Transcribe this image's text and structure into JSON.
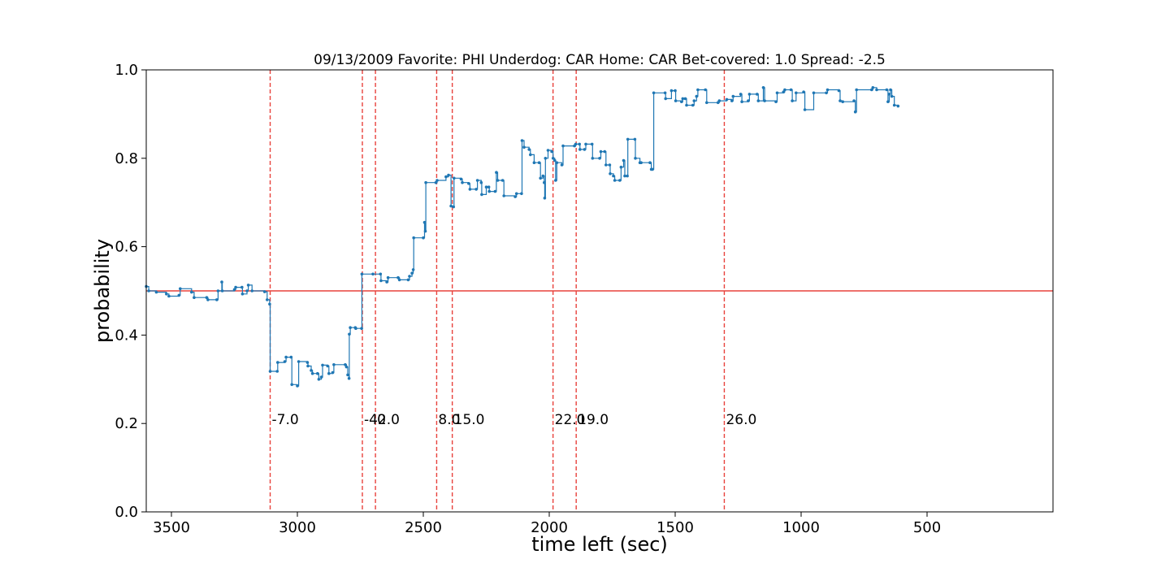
{
  "chart_data": {
    "type": "line",
    "title": "09/13/2009 Favorite: PHI Underdog: CAR Home: CAR Bet-covered: 1.0 Spread: -2.5",
    "xlabel": "time left (sec)",
    "ylabel": "probability",
    "xlim": [
      3600,
      0
    ],
    "ylim": [
      0.0,
      1.0
    ],
    "x_ticks": [
      3500,
      3000,
      2500,
      2000,
      1500,
      1000,
      500
    ],
    "y_ticks": [
      0.0,
      0.2,
      0.4,
      0.6,
      0.8,
      1.0
    ],
    "x_tick_labels": [
      "3500",
      "3000",
      "2500",
      "2000",
      "1500",
      "1000",
      "500"
    ],
    "y_tick_labels": [
      "0.0",
      "0.2",
      "0.4",
      "0.6",
      "0.8",
      "1.0"
    ],
    "reference_line": {
      "y": 0.5,
      "color": "#e8423c"
    },
    "line_color": "#1f77b4",
    "event_lines": [
      {
        "x": 3108,
        "label": "-7.0"
      },
      {
        "x": 2742,
        "label": "-42.0"
      },
      {
        "x": 2690,
        "label": "0"
      },
      {
        "x": 2447,
        "label": "8.0"
      },
      {
        "x": 2385,
        "label": "15.0"
      },
      {
        "x": 1985,
        "label": "22.0"
      },
      {
        "x": 1893,
        "label": "19.0"
      },
      {
        "x": 1305,
        "label": "26.0"
      }
    ],
    "series": [
      {
        "points": [
          [
            3600,
            0.51
          ],
          [
            3590,
            0.5
          ],
          [
            3560,
            0.497
          ],
          [
            3520,
            0.493
          ],
          [
            3510,
            0.488
          ],
          [
            3470,
            0.49
          ],
          [
            3465,
            0.505
          ],
          [
            3420,
            0.497
          ],
          [
            3410,
            0.485
          ],
          [
            3360,
            0.485
          ],
          [
            3355,
            0.48
          ],
          [
            3320,
            0.48
          ],
          [
            3315,
            0.5
          ],
          [
            3300,
            0.52
          ],
          [
            3298,
            0.5
          ],
          [
            3250,
            0.503
          ],
          [
            3245,
            0.508
          ],
          [
            3220,
            0.508
          ],
          [
            3218,
            0.493
          ],
          [
            3200,
            0.5
          ],
          [
            3195,
            0.513
          ],
          [
            3180,
            0.5
          ],
          [
            3130,
            0.498
          ],
          [
            3120,
            0.48
          ],
          [
            3110,
            0.47
          ],
          [
            3108,
            0.318
          ],
          [
            3080,
            0.318
          ],
          [
            3078,
            0.338
          ],
          [
            3050,
            0.34
          ],
          [
            3045,
            0.35
          ],
          [
            3025,
            0.35
          ],
          [
            3022,
            0.288
          ],
          [
            3000,
            0.285
          ],
          [
            2995,
            0.34
          ],
          [
            2960,
            0.338
          ],
          [
            2958,
            0.33
          ],
          [
            2945,
            0.32
          ],
          [
            2940,
            0.313
          ],
          [
            2920,
            0.313
          ],
          [
            2915,
            0.3
          ],
          [
            2905,
            0.305
          ],
          [
            2900,
            0.332
          ],
          [
            2880,
            0.33
          ],
          [
            2875,
            0.313
          ],
          [
            2860,
            0.315
          ],
          [
            2855,
            0.333
          ],
          [
            2810,
            0.333
          ],
          [
            2805,
            0.328
          ],
          [
            2800,
            0.31
          ],
          [
            2795,
            0.302
          ],
          [
            2794,
            0.402
          ],
          [
            2790,
            0.417
          ],
          [
            2770,
            0.417
          ],
          [
            2768,
            0.415
          ],
          [
            2745,
            0.415
          ],
          [
            2744,
            0.538
          ],
          [
            2700,
            0.538
          ],
          [
            2670,
            0.538
          ],
          [
            2668,
            0.523
          ],
          [
            2645,
            0.52
          ],
          [
            2640,
            0.53
          ],
          [
            2600,
            0.53
          ],
          [
            2595,
            0.525
          ],
          [
            2560,
            0.525
          ],
          [
            2555,
            0.533
          ],
          [
            2545,
            0.54
          ],
          [
            2540,
            0.548
          ],
          [
            2538,
            0.62
          ],
          [
            2500,
            0.62
          ],
          [
            2495,
            0.655
          ],
          [
            2492,
            0.635
          ],
          [
            2490,
            0.745
          ],
          [
            2450,
            0.745
          ],
          [
            2445,
            0.75
          ],
          [
            2410,
            0.758
          ],
          [
            2400,
            0.762
          ],
          [
            2390,
            0.692
          ],
          [
            2380,
            0.69
          ],
          [
            2378,
            0.755
          ],
          [
            2350,
            0.753
          ],
          [
            2345,
            0.745
          ],
          [
            2320,
            0.743
          ],
          [
            2315,
            0.73
          ],
          [
            2290,
            0.73
          ],
          [
            2285,
            0.75
          ],
          [
            2270,
            0.745
          ],
          [
            2268,
            0.718
          ],
          [
            2250,
            0.735
          ],
          [
            2240,
            0.735
          ],
          [
            2238,
            0.725
          ],
          [
            2215,
            0.725
          ],
          [
            2210,
            0.768
          ],
          [
            2205,
            0.75
          ],
          [
            2185,
            0.75
          ],
          [
            2180,
            0.715
          ],
          [
            2135,
            0.713
          ],
          [
            2130,
            0.72
          ],
          [
            2110,
            0.72
          ],
          [
            2108,
            0.84
          ],
          [
            2100,
            0.825
          ],
          [
            2080,
            0.82
          ],
          [
            2075,
            0.808
          ],
          [
            2060,
            0.79
          ],
          [
            2040,
            0.79
          ],
          [
            2035,
            0.755
          ],
          [
            2025,
            0.76
          ],
          [
            2020,
            0.745
          ],
          [
            2018,
            0.71
          ],
          [
            2015,
            0.8
          ],
          [
            2005,
            0.818
          ],
          [
            1990,
            0.815
          ],
          [
            1985,
            0.8
          ],
          [
            1978,
            0.795
          ],
          [
            1975,
            0.75
          ],
          [
            1970,
            0.79
          ],
          [
            1950,
            0.785
          ],
          [
            1945,
            0.828
          ],
          [
            1900,
            0.828
          ],
          [
            1895,
            0.832
          ],
          [
            1880,
            0.832
          ],
          [
            1878,
            0.82
          ],
          [
            1860,
            0.82
          ],
          [
            1855,
            0.832
          ],
          [
            1830,
            0.832
          ],
          [
            1828,
            0.8
          ],
          [
            1800,
            0.8
          ],
          [
            1795,
            0.815
          ],
          [
            1780,
            0.815
          ],
          [
            1775,
            0.785
          ],
          [
            1760,
            0.785
          ],
          [
            1758,
            0.765
          ],
          [
            1745,
            0.76
          ],
          [
            1740,
            0.75
          ],
          [
            1720,
            0.75
          ],
          [
            1715,
            0.78
          ],
          [
            1705,
            0.795
          ],
          [
            1700,
            0.76
          ],
          [
            1690,
            0.76
          ],
          [
            1688,
            0.843
          ],
          [
            1660,
            0.843
          ],
          [
            1658,
            0.8
          ],
          [
            1640,
            0.79
          ],
          [
            1635,
            0.79
          ],
          [
            1600,
            0.79
          ],
          [
            1595,
            0.775
          ],
          [
            1590,
            0.775
          ],
          [
            1585,
            0.948
          ],
          [
            1540,
            0.948
          ],
          [
            1538,
            0.935
          ],
          [
            1515,
            0.953
          ],
          [
            1500,
            0.953
          ],
          [
            1498,
            0.93
          ],
          [
            1475,
            0.928
          ],
          [
            1470,
            0.935
          ],
          [
            1460,
            0.935
          ],
          [
            1455,
            0.92
          ],
          [
            1430,
            0.92
          ],
          [
            1425,
            0.93
          ],
          [
            1415,
            0.94
          ],
          [
            1410,
            0.955
          ],
          [
            1380,
            0.955
          ],
          [
            1375,
            0.926
          ],
          [
            1330,
            0.926
          ],
          [
            1325,
            0.93
          ],
          [
            1295,
            0.933
          ],
          [
            1275,
            0.93
          ],
          [
            1270,
            0.94
          ],
          [
            1240,
            0.945
          ],
          [
            1235,
            0.928
          ],
          [
            1210,
            0.93
          ],
          [
            1205,
            0.945
          ],
          [
            1175,
            0.945
          ],
          [
            1170,
            0.93
          ],
          [
            1150,
            0.96
          ],
          [
            1145,
            0.93
          ],
          [
            1100,
            0.928
          ],
          [
            1095,
            0.948
          ],
          [
            1070,
            0.95
          ],
          [
            1065,
            0.955
          ],
          [
            1040,
            0.955
          ],
          [
            1035,
            0.93
          ],
          [
            1020,
            0.948
          ],
          [
            990,
            0.95
          ],
          [
            985,
            0.91
          ],
          [
            950,
            0.948
          ],
          [
            900,
            0.948
          ],
          [
            895,
            0.955
          ],
          [
            850,
            0.953
          ],
          [
            845,
            0.93
          ],
          [
            835,
            0.928
          ],
          [
            790,
            0.93
          ],
          [
            785,
            0.905
          ],
          [
            780,
            0.955
          ],
          [
            720,
            0.955
          ],
          [
            715,
            0.96
          ],
          [
            700,
            0.955
          ],
          [
            660,
            0.955
          ],
          [
            655,
            0.928
          ],
          [
            650,
            0.945
          ],
          [
            645,
            0.955
          ],
          [
            640,
            0.94
          ],
          [
            630,
            0.92
          ],
          [
            615,
            0.918
          ]
        ]
      }
    ]
  }
}
